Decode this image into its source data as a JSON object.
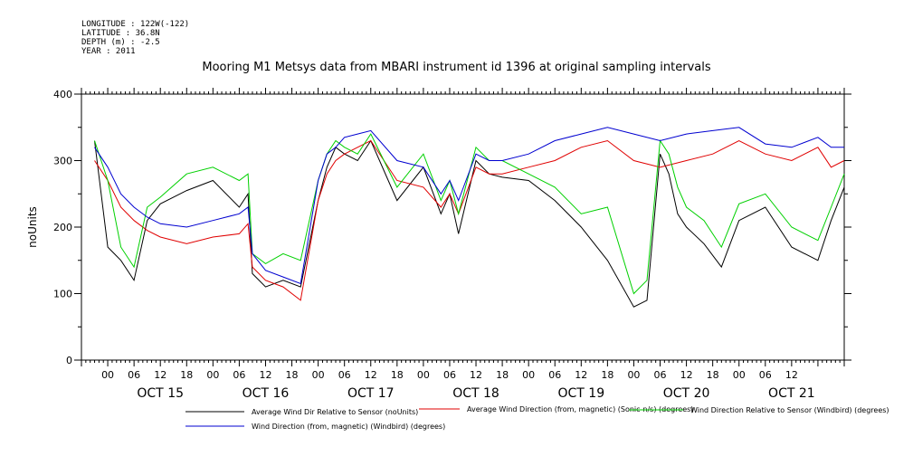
{
  "header": {
    "longitude": "LONGITUDE : 122W(-122)",
    "latitude": "LATITUDE : 36.8N",
    "depth": "DEPTH (m) : -2.5",
    "year": "YEAR : 2011"
  },
  "chart_data": {
    "type": "line",
    "title": "Mooring M1 Metsys data from MBARI instrument id 1396 at original sampling intervals",
    "ylabel": "noUnits",
    "ylim": [
      0,
      400
    ],
    "yticks": [
      0,
      100,
      200,
      300,
      400
    ],
    "xlim_hours": [
      -6,
      168
    ],
    "xlabel_hours": [
      "00",
      "06",
      "12",
      "18",
      "00",
      "06",
      "12",
      "18",
      "00",
      "06",
      "12",
      "18",
      "00",
      "06",
      "12",
      "18",
      "00",
      "06",
      "12",
      "18",
      "00",
      "06",
      "12",
      "18",
      "00",
      "06",
      "12"
    ],
    "days": [
      "OCT 15",
      "OCT 16",
      "OCT 17",
      "OCT 18",
      "OCT 19",
      "OCT 20",
      "OCT 21"
    ],
    "series": [
      {
        "name": "Average Wind Dir Relative to Sensor (noUnits)",
        "color": "#000000",
        "x": [
          -3,
          0,
          3,
          6,
          9,
          12,
          18,
          24,
          30,
          32,
          33,
          36,
          40,
          44,
          48,
          50,
          52,
          54,
          57,
          60,
          66,
          72,
          76,
          78,
          80,
          84,
          87,
          90,
          96,
          102,
          108,
          114,
          120,
          123,
          126,
          128,
          130,
          132,
          136,
          140,
          144,
          150,
          156,
          162,
          165,
          168
        ],
        "y": [
          330,
          170,
          150,
          120,
          210,
          235,
          255,
          270,
          230,
          250,
          130,
          110,
          120,
          110,
          240,
          290,
          320,
          310,
          300,
          330,
          240,
          290,
          220,
          250,
          190,
          300,
          280,
          275,
          270,
          240,
          200,
          150,
          80,
          90,
          310,
          280,
          220,
          200,
          175,
          140,
          210,
          230,
          170,
          150,
          210,
          260
        ]
      },
      {
        "name": "Average Wind Direction (from, magnetic) (Sonic-n/s) (degrees)",
        "color": "#e00000",
        "x": [
          -3,
          0,
          3,
          6,
          9,
          12,
          18,
          24,
          30,
          32,
          33,
          36,
          40,
          44,
          48,
          50,
          52,
          54,
          57,
          60,
          66,
          72,
          76,
          78,
          80,
          84,
          87,
          90,
          96,
          102,
          108,
          114,
          120,
          126,
          132,
          138,
          144,
          150,
          156,
          162,
          165,
          168
        ],
        "y": [
          300,
          270,
          230,
          210,
          195,
          185,
          175,
          185,
          190,
          205,
          140,
          120,
          110,
          90,
          240,
          280,
          300,
          310,
          320,
          330,
          270,
          260,
          230,
          250,
          220,
          290,
          280,
          280,
          290,
          300,
          320,
          330,
          300,
          290,
          300,
          310,
          330,
          310,
          300,
          320,
          290,
          300
        ]
      },
      {
        "name": "Wind Direction Relative to Sensor (Windbird) (degrees)",
        "color": "#00d000",
        "x": [
          -3,
          0,
          3,
          6,
          9,
          12,
          18,
          24,
          30,
          32,
          33,
          36,
          40,
          44,
          48,
          50,
          52,
          54,
          57,
          60,
          66,
          72,
          76,
          78,
          80,
          84,
          87,
          90,
          96,
          102,
          108,
          114,
          120,
          123,
          126,
          128,
          130,
          132,
          136,
          140,
          144,
          150,
          156,
          162,
          165,
          168
        ],
        "y": [
          330,
          270,
          170,
          140,
          230,
          245,
          280,
          290,
          270,
          280,
          160,
          145,
          160,
          150,
          270,
          310,
          330,
          320,
          310,
          340,
          260,
          310,
          240,
          270,
          220,
          320,
          300,
          300,
          280,
          260,
          220,
          230,
          100,
          120,
          330,
          310,
          260,
          230,
          210,
          170,
          235,
          250,
          200,
          180,
          230,
          280
        ]
      },
      {
        "name": "Wind Direction (from, magnetic) (Windbird) (degrees)",
        "color": "#0000d0",
        "x": [
          -3,
          0,
          3,
          6,
          9,
          12,
          18,
          24,
          30,
          32,
          33,
          36,
          40,
          44,
          48,
          50,
          52,
          54,
          57,
          60,
          66,
          72,
          76,
          78,
          80,
          84,
          87,
          90,
          96,
          102,
          108,
          114,
          120,
          126,
          132,
          138,
          144,
          150,
          156,
          162,
          165,
          168
        ],
        "y": [
          320,
          290,
          250,
          230,
          215,
          205,
          200,
          210,
          220,
          230,
          160,
          135,
          125,
          115,
          270,
          310,
          320,
          335,
          340,
          345,
          300,
          290,
          250,
          270,
          240,
          310,
          300,
          300,
          310,
          330,
          340,
          350,
          340,
          330,
          340,
          345,
          350,
          325,
          320,
          335,
          320,
          320
        ]
      }
    ],
    "legend": {
      "placement": "bottom"
    }
  }
}
